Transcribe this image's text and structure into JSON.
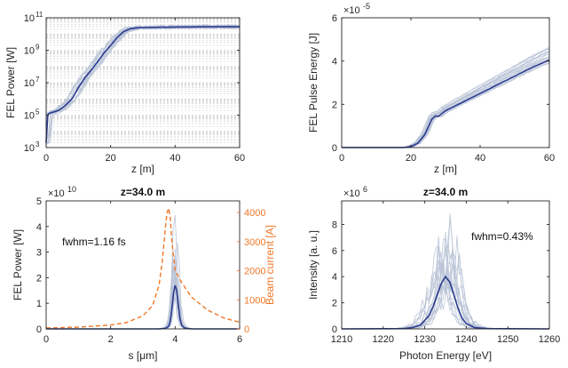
{
  "colors": {
    "mean": "#2b3a8f",
    "shot": "#b8c3d6",
    "current": "#f07828",
    "axis": "#262626"
  },
  "chart_data": [
    {
      "id": "p1",
      "type": "line",
      "scale": "log",
      "xlabel": "z [m]",
      "ylabel": "FEL Power [W]",
      "title": "",
      "exponent": "",
      "xlim": [
        0,
        60
      ],
      "ylim": [
        1000,
        100000000000
      ],
      "xticks": [
        0,
        20,
        40,
        60
      ],
      "xtick_labels": [
        "0",
        "20",
        "40",
        "60"
      ],
      "yticks": [
        1000,
        100000,
        10000000,
        1000000000,
        100000000000
      ],
      "ytick_labels": [
        "10",
        "10",
        "10",
        "10",
        "10"
      ],
      "ytick_exps": [
        "3",
        "5",
        "7",
        "9",
        "11"
      ],
      "grid": "minor",
      "mean": {
        "name": "mean",
        "x": [
          0,
          0.5,
          1,
          2,
          4,
          6,
          8,
          10,
          12,
          14,
          16,
          18,
          20,
          22,
          24,
          26,
          28,
          30,
          35,
          40,
          50,
          60
        ],
        "y": [
          2000,
          100000,
          130000,
          150000,
          200000,
          400000,
          1000000,
          5000000,
          20000000,
          60000000,
          200000000,
          700000000,
          2000000000,
          6000000000,
          14000000000,
          21000000000,
          24000000000,
          25000000000,
          26000000000,
          27000000000,
          28000000000,
          28000000000
        ]
      },
      "shot_count": 16
    },
    {
      "id": "p2",
      "type": "line",
      "scale": "linear",
      "xlabel": "z [m]",
      "ylabel": "FEL Pulse Energy [J]",
      "title": "",
      "exponent": "-5",
      "xlim": [
        0,
        60
      ],
      "ylim": [
        0,
        6
      ],
      "xticks": [
        0,
        20,
        40,
        60
      ],
      "xtick_labels": [
        "0",
        "20",
        "40",
        "60"
      ],
      "yticks": [
        0,
        2,
        4,
        6
      ],
      "ytick_labels": [
        "0",
        "2",
        "4",
        "6"
      ],
      "mean": {
        "name": "mean",
        "x": [
          0,
          10,
          18,
          20,
          22,
          24,
          25,
          26,
          27,
          28,
          30,
          35,
          40,
          45,
          50,
          55,
          60
        ],
        "y": [
          0,
          0,
          0,
          0.05,
          0.2,
          0.6,
          0.95,
          1.3,
          1.45,
          1.45,
          1.7,
          2.1,
          2.5,
          2.9,
          3.3,
          3.7,
          4.05
        ]
      },
      "shot_count": 16
    },
    {
      "id": "p3",
      "type": "line",
      "scale": "linear",
      "xlabel": "s [μm]",
      "ylabel": "FEL Power [W]",
      "ylabel_right": "Beam current [A]",
      "title": "z=34.0 m",
      "exponent": "10",
      "annotation": "fwhm=1.16 fs",
      "xlim": [
        0,
        6
      ],
      "ylim": [
        0,
        5
      ],
      "ylim_right": [
        0,
        4400
      ],
      "xticks": [
        0,
        2,
        4,
        6
      ],
      "xtick_labels": [
        "0",
        "2",
        "4",
        "6"
      ],
      "yticks": [
        0,
        1,
        2,
        3,
        4,
        5
      ],
      "ytick_labels": [
        "0",
        "1",
        "2",
        "3",
        "4",
        "5"
      ],
      "yticks_right": [
        0,
        1000,
        2000,
        3000,
        4000
      ],
      "ytick_labels_right": [
        "0",
        "1000",
        "2000",
        "3000",
        "4000"
      ],
      "mean": {
        "name": "FEL power (mean)",
        "x": [
          0,
          3.5,
          3.7,
          3.8,
          3.85,
          3.9,
          3.95,
          4.0,
          4.05,
          4.1,
          4.15,
          4.2,
          4.3,
          4.5,
          6
        ],
        "y": [
          0,
          0,
          0.02,
          0.1,
          0.3,
          0.8,
          1.4,
          1.7,
          1.5,
          0.9,
          0.4,
          0.15,
          0.03,
          0,
          0
        ]
      },
      "current": {
        "name": "Beam current",
        "x": [
          0,
          1,
          2,
          2.5,
          3,
          3.3,
          3.5,
          3.6,
          3.7,
          3.75,
          3.8,
          3.85,
          3.9,
          4.0,
          4.2,
          4.5,
          5,
          5.5,
          6
        ],
        "y": [
          30,
          60,
          130,
          220,
          450,
          800,
          1500,
          2300,
          3500,
          4000,
          4150,
          3800,
          3000,
          2000,
          1600,
          1100,
          650,
          380,
          230
        ]
      },
      "shot_count": 16
    },
    {
      "id": "p4",
      "type": "line",
      "scale": "linear",
      "xlabel": "Photon Energy [eV]",
      "ylabel": "Intensity [a. u.]",
      "title": "z=34.0 m",
      "exponent": "6",
      "annotation": "fwhm=0.43%",
      "xlim": [
        1210,
        1260
      ],
      "ylim": [
        0,
        9.8
      ],
      "xticks": [
        1210,
        1220,
        1230,
        1240,
        1250,
        1260
      ],
      "xtick_labels": [
        "1210",
        "1220",
        "1230",
        "1240",
        "1250",
        "1260"
      ],
      "yticks": [
        0,
        2,
        4,
        6,
        8
      ],
      "ytick_labels": [
        "0",
        "2",
        "4",
        "6",
        "8"
      ],
      "mean": {
        "name": "mean",
        "x": [
          1210,
          1225,
          1227,
          1229,
          1231,
          1232,
          1233,
          1234,
          1235,
          1236,
          1237,
          1238,
          1239,
          1240,
          1242,
          1245,
          1260
        ],
        "y": [
          0,
          0.02,
          0.1,
          0.3,
          1.0,
          1.7,
          2.6,
          3.5,
          4.0,
          3.6,
          2.6,
          1.6,
          0.8,
          0.4,
          0.1,
          0.02,
          0
        ]
      },
      "shot_count": 16
    }
  ]
}
